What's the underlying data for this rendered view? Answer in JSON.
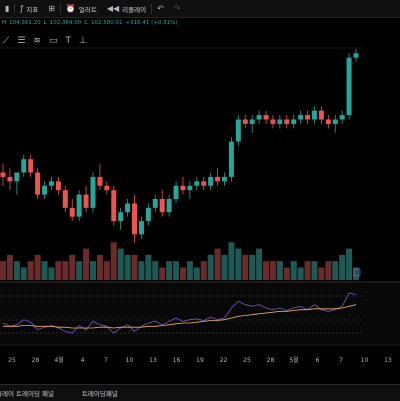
{
  "toolbar": {
    "indicators_label": "지표",
    "alert_label": "얼러트",
    "replay_label": "리플레이"
  },
  "ohlc": {
    "high_key": "H",
    "high_value": "104,361.20",
    "low_key": "L",
    "low_value": "102,364.00",
    "close_key": "C",
    "close_value": "102,580.01",
    "change": "+316.41 (+0.31%)"
  },
  "colors": {
    "up": "#26a69a",
    "down": "#ef5350",
    "vol_up": "#1e5a55",
    "vol_down": "#6b2b2b",
    "rsi": "#7e57c2",
    "rsi_ma": "#f0b35a"
  },
  "x_axis": {
    "labels": [
      "25",
      "28",
      "4월",
      "4",
      "7",
      "10",
      "13",
      "16",
      "19",
      "22",
      "25",
      "28",
      "5월",
      "6",
      "7",
      "10",
      "13"
    ]
  },
  "chart_data": {
    "type": "candlestick",
    "candles": [
      [
        88,
        90,
        85,
        87
      ],
      [
        87,
        89,
        84,
        86
      ],
      [
        86,
        88,
        83,
        88
      ],
      [
        88,
        92,
        87,
        91
      ],
      [
        91,
        92,
        87,
        88
      ],
      [
        88,
        89,
        82,
        83
      ],
      [
        83,
        86,
        82,
        85
      ],
      [
        85,
        87,
        84,
        86
      ],
      [
        86,
        87,
        83,
        84
      ],
      [
        84,
        85,
        79,
        80
      ],
      [
        80,
        82,
        77,
        78
      ],
      [
        78,
        84,
        77,
        83
      ],
      [
        83,
        85,
        79,
        80
      ],
      [
        80,
        88,
        79,
        87
      ],
      [
        87,
        90,
        84,
        85
      ],
      [
        85,
        86,
        83,
        84
      ],
      [
        84,
        85,
        76,
        77
      ],
      [
        77,
        80,
        75,
        79
      ],
      [
        79,
        82,
        78,
        81
      ],
      [
        81,
        83,
        72,
        74
      ],
      [
        74,
        78,
        73,
        77
      ],
      [
        77,
        81,
        76,
        80
      ],
      [
        80,
        83,
        79,
        82
      ],
      [
        82,
        84,
        78,
        79
      ],
      [
        79,
        83,
        78,
        82
      ],
      [
        82,
        86,
        81,
        85
      ],
      [
        85,
        87,
        83,
        84
      ],
      [
        84,
        86,
        82,
        85
      ],
      [
        85,
        87,
        84,
        86
      ],
      [
        86,
        87,
        84,
        85
      ],
      [
        85,
        88,
        84,
        87
      ],
      [
        87,
        89,
        85,
        86
      ],
      [
        86,
        88,
        85,
        87
      ],
      [
        87,
        96,
        86,
        95
      ],
      [
        95,
        101,
        94,
        100
      ],
      [
        100,
        101,
        98,
        99
      ],
      [
        99,
        101,
        97,
        100
      ],
      [
        100,
        102,
        99,
        101
      ],
      [
        101,
        102,
        99,
        100
      ],
      [
        100,
        101,
        98,
        99
      ],
      [
        99,
        101,
        98,
        100
      ],
      [
        100,
        101,
        98,
        99
      ],
      [
        99,
        101,
        98,
        100
      ],
      [
        100,
        102,
        99,
        101
      ],
      [
        101,
        102,
        99,
        100
      ],
      [
        100,
        103,
        99,
        102
      ],
      [
        102,
        103,
        99,
        100
      ],
      [
        100,
        101,
        98,
        99
      ],
      [
        99,
        101,
        97,
        100
      ],
      [
        100,
        102,
        99,
        101
      ],
      [
        101,
        115,
        100,
        114
      ],
      [
        114,
        116,
        113,
        115
      ]
    ],
    "volume": [
      3,
      4,
      3,
      2,
      3,
      4,
      3,
      2,
      3,
      3,
      4,
      3,
      5,
      3,
      4,
      3,
      6,
      5,
      4,
      4,
      3,
      4,
      3,
      2,
      3,
      3,
      2,
      3,
      2,
      3,
      4,
      5,
      4,
      6,
      5,
      4,
      4,
      5,
      3,
      3,
      3,
      2,
      3,
      2,
      3,
      3,
      2,
      3,
      3,
      4,
      5,
      2
    ],
    "rsi": [
      48,
      44,
      46,
      52,
      49,
      40,
      43,
      45,
      42,
      38,
      36,
      45,
      40,
      50,
      46,
      44,
      36,
      42,
      46,
      38,
      44,
      48,
      50,
      46,
      50,
      54,
      50,
      52,
      53,
      51,
      55,
      52,
      54,
      66,
      74,
      70,
      68,
      70,
      66,
      64,
      66,
      63,
      66,
      68,
      64,
      70,
      64,
      62,
      64,
      68,
      84,
      82
    ],
    "rsi_ma": [
      44,
      44,
      44,
      45,
      45,
      44,
      44,
      44,
      43,
      43,
      42,
      42,
      42,
      42,
      43,
      43,
      42,
      43,
      43,
      43,
      43,
      44,
      44,
      45,
      46,
      47,
      48,
      48,
      49,
      50,
      51,
      51,
      52,
      54,
      56,
      57,
      58,
      59,
      60,
      61,
      62,
      62,
      63,
      64,
      64,
      65,
      65,
      65,
      65,
      66,
      68,
      70
    ]
  }
}
